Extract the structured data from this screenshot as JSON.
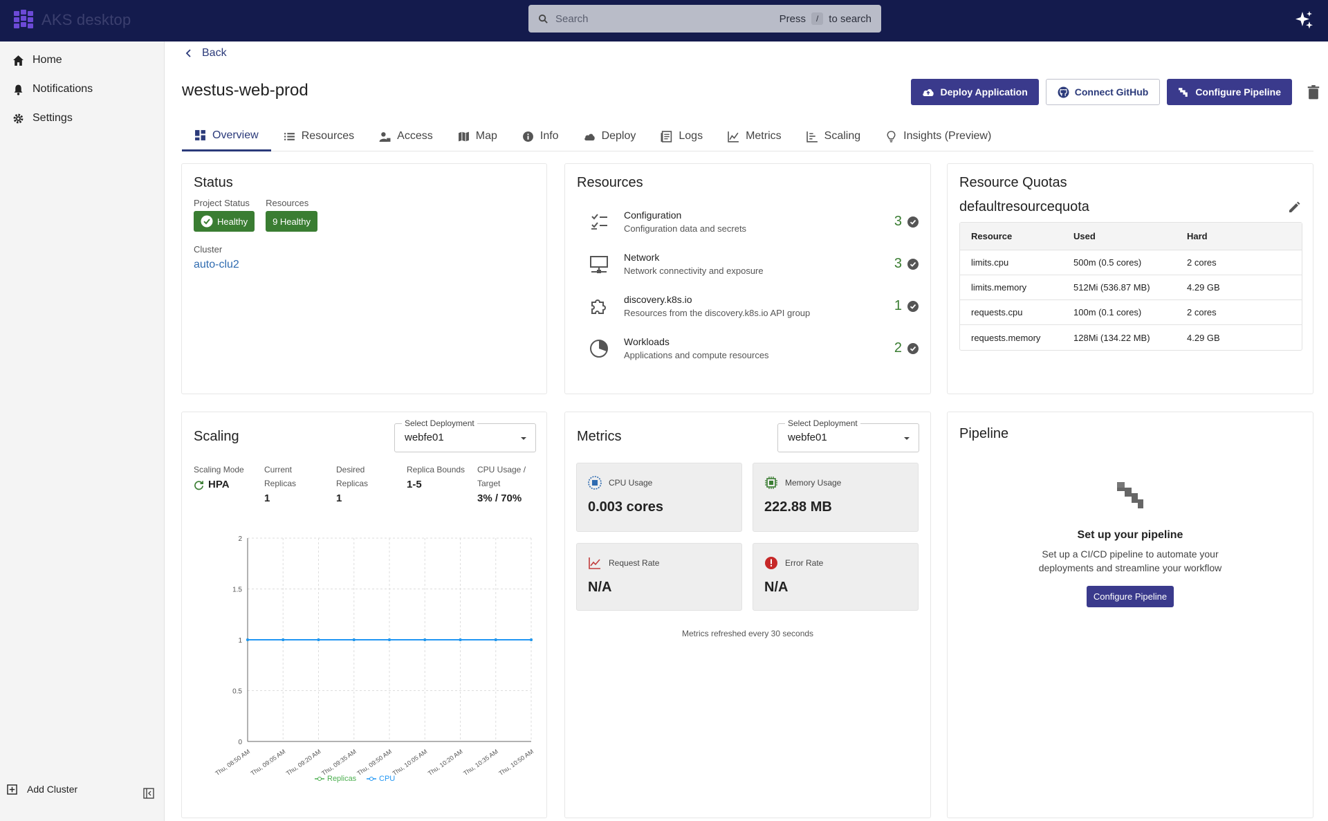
{
  "app": {
    "title": "AKS desktop"
  },
  "search": {
    "placeholder": "Search",
    "hint_press": "Press",
    "hint_key": "/",
    "hint_suffix": "to search"
  },
  "sidebar": {
    "items": [
      {
        "label": "Home",
        "icon": "home-icon"
      },
      {
        "label": "Notifications",
        "icon": "bell-icon"
      },
      {
        "label": "Settings",
        "icon": "gear-icon"
      }
    ],
    "add_cluster": "Add Cluster"
  },
  "header": {
    "back": "Back",
    "title": "westus-web-prod",
    "deploy_label": "Deploy Application",
    "github_label": "Connect GitHub",
    "pipeline_label": "Configure Pipeline"
  },
  "tabs": [
    "Overview",
    "Resources",
    "Access",
    "Map",
    "Info",
    "Deploy",
    "Logs",
    "Metrics",
    "Scaling",
    "Insights (Preview)"
  ],
  "status": {
    "title": "Status",
    "project_status_label": "Project Status",
    "project_status_value": "Healthy",
    "resources_label": "Resources",
    "resources_value": "9 Healthy",
    "cluster_label": "Cluster",
    "cluster_value": "auto-clu2"
  },
  "resources": {
    "title": "Resources",
    "items": [
      {
        "name": "Configuration",
        "desc": "Configuration data and secrets",
        "count": "3"
      },
      {
        "name": "Network",
        "desc": "Network connectivity and exposure",
        "count": "3"
      },
      {
        "name": "discovery.k8s.io",
        "desc": "Resources from the discovery.k8s.io API group",
        "count": "1"
      },
      {
        "name": "Workloads",
        "desc": "Applications and compute resources",
        "count": "2"
      }
    ]
  },
  "quotas": {
    "title": "Resource Quotas",
    "name": "defaultresourcequota",
    "headers": [
      "Resource",
      "Used",
      "Hard"
    ],
    "rows": [
      [
        "limits.cpu",
        "500m (0.5 cores)",
        "2 cores"
      ],
      [
        "limits.memory",
        "512Mi (536.87 MB)",
        "4.29 GB"
      ],
      [
        "requests.cpu",
        "100m (0.1 cores)",
        "2 cores"
      ],
      [
        "requests.memory",
        "128Mi (134.22 MB)",
        "4.29 GB"
      ]
    ]
  },
  "scaling": {
    "title": "Scaling",
    "select_label": "Select Deployment",
    "select_value": "webfe01",
    "mode_label": "Scaling Mode",
    "mode_value": "HPA",
    "current_label_1": "Current",
    "current_label_2": "Replicas",
    "current_value": "1",
    "desired_label_1": "Desired",
    "desired_label_2": "Replicas",
    "desired_value": "1",
    "bounds_label": "Replica Bounds",
    "bounds_value": "1-5",
    "cpu_label_1": "CPU Usage /",
    "cpu_label_2": "Target",
    "cpu_value": "3% / 70%"
  },
  "chart_data": {
    "type": "line",
    "x": [
      "Thu, 08:50 AM",
      "Thu, 09:05 AM",
      "Thu, 09:20 AM",
      "Thu, 09:35 AM",
      "Thu, 09:50 AM",
      "Thu, 10:05 AM",
      "Thu, 10:20 AM",
      "Thu, 10:35 AM",
      "Thu, 10:50 AM"
    ],
    "series": [
      {
        "name": "Replicas",
        "values": [
          1,
          1,
          1,
          1,
          1,
          1,
          1,
          1,
          1
        ],
        "color": "#4caf50"
      },
      {
        "name": "CPU",
        "values": [
          1,
          1,
          1,
          1,
          1,
          1,
          1,
          1,
          1
        ],
        "color": "#2196f3"
      }
    ],
    "yticks": [
      "0",
      "0.5",
      "1",
      "1.5",
      "2"
    ],
    "ylim": [
      0,
      2
    ],
    "grid": true,
    "legend": "bottom"
  },
  "metrics": {
    "title": "Metrics",
    "select_label": "Select Deployment",
    "select_value": "webfe01",
    "cpu_label": "CPU Usage",
    "cpu_value": "0.003 cores",
    "mem_label": "Memory Usage",
    "mem_value": "222.88 MB",
    "req_label": "Request Rate",
    "req_value": "N/A",
    "err_label": "Error Rate",
    "err_value": "N/A",
    "refresh_note": "Metrics refreshed every 30 seconds"
  },
  "pipeline": {
    "title": "Pipeline",
    "heading": "Set up your pipeline",
    "desc_1": "Set up a CI/CD pipeline to automate your",
    "desc_2": "deployments and streamline your workflow",
    "button": "Configure Pipeline"
  },
  "colors": {
    "topbar": "#141b4d",
    "primary": "#3a3a8c",
    "healthy": "#3a7d32"
  }
}
